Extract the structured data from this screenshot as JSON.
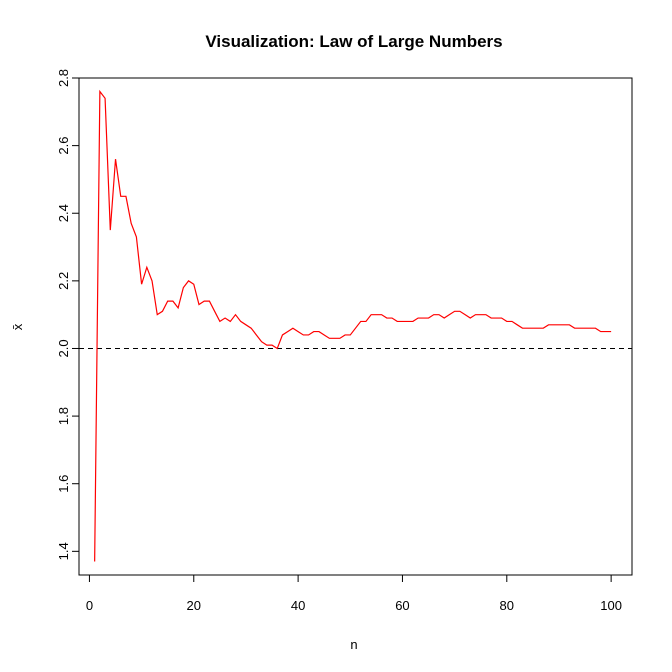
{
  "chart_data": {
    "type": "line",
    "title": "Visualization: Law of Large Numbers",
    "xlabel": "n",
    "ylabel": "x̄",
    "xlim": [
      -2,
      104
    ],
    "ylim": [
      1.33,
      2.8
    ],
    "xticks": [
      0,
      20,
      40,
      60,
      80,
      100
    ],
    "yticks": [
      1.4,
      1.6,
      1.8,
      2.0,
      2.2,
      2.4,
      2.6,
      2.8
    ],
    "xtick_labels": [
      "0",
      "20",
      "40",
      "60",
      "80",
      "100"
    ],
    "ytick_labels": [
      "1.4",
      "1.6",
      "1.8",
      "2.0",
      "2.2",
      "2.4",
      "2.6",
      "2.8"
    ],
    "grid": false,
    "reference_line": {
      "y": 2.0,
      "style": "dashed",
      "color": "#000000"
    },
    "series": [
      {
        "color": "#ff0000",
        "x": [
          1,
          2,
          3,
          4,
          5,
          6,
          7,
          8,
          9,
          10,
          11,
          12,
          13,
          14,
          15,
          16,
          17,
          18,
          19,
          20,
          21,
          22,
          23,
          24,
          25,
          26,
          27,
          28,
          29,
          30,
          31,
          32,
          33,
          34,
          35,
          36,
          37,
          38,
          39,
          40,
          41,
          42,
          43,
          44,
          45,
          46,
          47,
          48,
          49,
          50,
          51,
          52,
          53,
          54,
          55,
          56,
          57,
          58,
          59,
          60,
          61,
          62,
          63,
          64,
          65,
          66,
          67,
          68,
          69,
          70,
          71,
          72,
          73,
          74,
          75,
          76,
          77,
          78,
          79,
          80,
          81,
          82,
          83,
          84,
          85,
          86,
          87,
          88,
          89,
          90,
          91,
          92,
          93,
          94,
          95,
          96,
          97,
          98,
          99,
          100
        ],
        "values": [
          1.37,
          2.76,
          2.74,
          2.35,
          2.56,
          2.45,
          2.45,
          2.37,
          2.33,
          2.19,
          2.24,
          2.2,
          2.1,
          2.11,
          2.14,
          2.14,
          2.12,
          2.18,
          2.2,
          2.19,
          2.13,
          2.14,
          2.14,
          2.11,
          2.08,
          2.09,
          2.08,
          2.1,
          2.08,
          2.07,
          2.06,
          2.04,
          2.02,
          2.01,
          2.01,
          2.0,
          2.04,
          2.05,
          2.06,
          2.05,
          2.04,
          2.04,
          2.05,
          2.05,
          2.04,
          2.03,
          2.03,
          2.03,
          2.04,
          2.04,
          2.06,
          2.08,
          2.08,
          2.1,
          2.1,
          2.1,
          2.09,
          2.09,
          2.08,
          2.08,
          2.08,
          2.08,
          2.09,
          2.09,
          2.09,
          2.1,
          2.1,
          2.09,
          2.1,
          2.11,
          2.11,
          2.1,
          2.09,
          2.1,
          2.1,
          2.1,
          2.09,
          2.09,
          2.09,
          2.08,
          2.08,
          2.07,
          2.06,
          2.06,
          2.06,
          2.06,
          2.06,
          2.07,
          2.07,
          2.07,
          2.07,
          2.07,
          2.06,
          2.06,
          2.06,
          2.06,
          2.06,
          2.05,
          2.05,
          2.05
        ]
      }
    ]
  }
}
